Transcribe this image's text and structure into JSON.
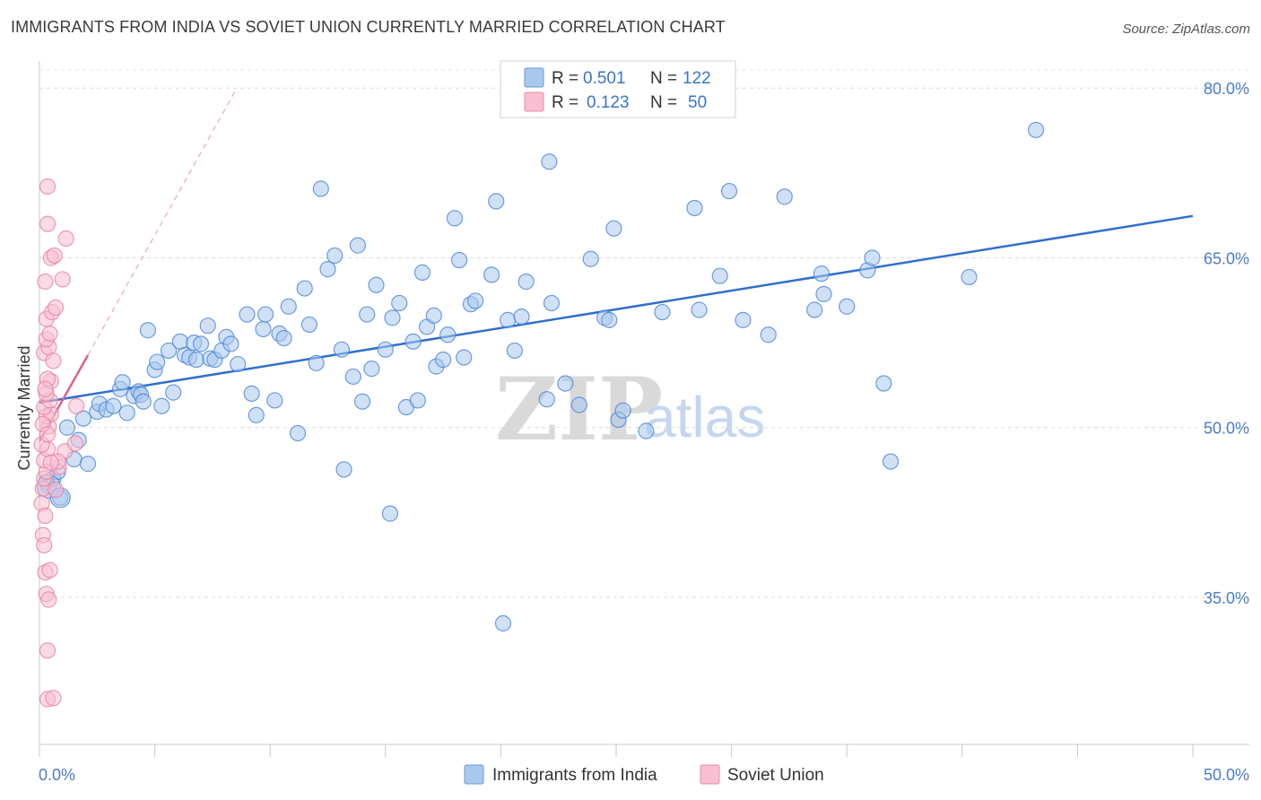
{
  "header": {
    "title": "IMMIGRANTS FROM INDIA VS SOVIET UNION CURRENTLY MARRIED CORRELATION CHART",
    "source": "Source: ZipAtlas.com"
  },
  "watermark": {
    "zip": "ZIP",
    "atlas": "atlas"
  },
  "legend": {
    "r_label": "R =",
    "n_label": "N =",
    "rows": [
      {
        "r": "0.501",
        "n": "122",
        "color": "#9dbfe8"
      },
      {
        "r": "0.123",
        "n": "50",
        "color": "#f5b5c9"
      }
    ]
  },
  "chart_data": {
    "type": "scatter",
    "title": "IMMIGRANTS FROM INDIA VS SOVIET UNION CURRENTLY MARRIED CORRELATION CHART",
    "ylabel": "Currently Married",
    "xlabel": "",
    "xlim": [
      0,
      50
    ],
    "ylim": [
      22,
      82
    ],
    "x_tick_labels": [
      "0.0%",
      "50.0%"
    ],
    "y_ticks": [
      35,
      50,
      65,
      80
    ],
    "y_tick_labels": [
      "35.0%",
      "50.0%",
      "65.0%",
      "80.0%"
    ],
    "grid": true,
    "legend_position": "top-center",
    "series": [
      {
        "name": "Immigrants from India",
        "color": "#4a86d6",
        "fill": "#a9c8ee",
        "trend": {
          "x": [
            0,
            50
          ],
          "y": [
            52.2,
            68.7
          ],
          "color": "#2f6fce"
        },
        "points": [
          [
            0.4,
            44.8
          ],
          [
            0.6,
            45.5
          ],
          [
            0.9,
            43.8
          ],
          [
            0.3,
            45.2
          ],
          [
            0.8,
            46.1
          ],
          [
            1.2,
            50.0
          ],
          [
            1.5,
            47.2
          ],
          [
            1.7,
            48.9
          ],
          [
            1.9,
            50.8
          ],
          [
            2.1,
            46.8
          ],
          [
            2.5,
            51.4
          ],
          [
            2.6,
            52.1
          ],
          [
            2.9,
            51.6
          ],
          [
            3.2,
            51.9
          ],
          [
            3.5,
            53.4
          ],
          [
            3.6,
            54.0
          ],
          [
            3.8,
            51.3
          ],
          [
            4.1,
            52.8
          ],
          [
            4.3,
            53.2
          ],
          [
            4.4,
            52.9
          ],
          [
            4.5,
            52.3
          ],
          [
            4.7,
            58.6
          ],
          [
            5.0,
            55.1
          ],
          [
            5.1,
            55.8
          ],
          [
            5.3,
            51.9
          ],
          [
            5.6,
            56.8
          ],
          [
            5.8,
            53.1
          ],
          [
            6.1,
            57.6
          ],
          [
            6.3,
            56.4
          ],
          [
            6.5,
            56.2
          ],
          [
            6.7,
            57.5
          ],
          [
            6.8,
            56.0
          ],
          [
            7.0,
            57.4
          ],
          [
            7.3,
            59.0
          ],
          [
            7.4,
            56.1
          ],
          [
            7.6,
            56.0
          ],
          [
            7.9,
            56.8
          ],
          [
            8.1,
            58.0
          ],
          [
            8.3,
            57.4
          ],
          [
            8.6,
            55.6
          ],
          [
            9.0,
            60.0
          ],
          [
            9.2,
            53.0
          ],
          [
            9.4,
            51.1
          ],
          [
            9.7,
            58.7
          ],
          [
            9.8,
            60.0
          ],
          [
            10.2,
            52.4
          ],
          [
            10.4,
            58.3
          ],
          [
            10.6,
            57.9
          ],
          [
            10.8,
            60.7
          ],
          [
            11.2,
            49.5
          ],
          [
            11.5,
            62.3
          ],
          [
            11.7,
            59.1
          ],
          [
            12.0,
            55.7
          ],
          [
            12.2,
            71.1
          ],
          [
            12.5,
            64.0
          ],
          [
            12.8,
            65.2
          ],
          [
            13.1,
            56.9
          ],
          [
            13.2,
            46.3
          ],
          [
            13.6,
            54.5
          ],
          [
            13.8,
            66.1
          ],
          [
            14.0,
            52.3
          ],
          [
            14.2,
            60.0
          ],
          [
            14.4,
            55.2
          ],
          [
            14.6,
            62.6
          ],
          [
            15.0,
            56.9
          ],
          [
            15.2,
            42.4
          ],
          [
            15.3,
            59.7
          ],
          [
            15.6,
            61.0
          ],
          [
            15.9,
            51.8
          ],
          [
            16.2,
            57.6
          ],
          [
            16.4,
            52.4
          ],
          [
            16.6,
            63.7
          ],
          [
            16.8,
            58.9
          ],
          [
            17.1,
            59.9
          ],
          [
            17.2,
            55.4
          ],
          [
            17.5,
            56.0
          ],
          [
            17.7,
            58.2
          ],
          [
            18.0,
            68.5
          ],
          [
            18.2,
            64.8
          ],
          [
            18.4,
            56.2
          ],
          [
            18.7,
            60.9
          ],
          [
            18.9,
            61.2
          ],
          [
            19.6,
            63.5
          ],
          [
            19.8,
            70.0
          ],
          [
            20.1,
            32.7
          ],
          [
            20.3,
            59.5
          ],
          [
            20.6,
            56.8
          ],
          [
            20.9,
            59.8
          ],
          [
            21.1,
            62.9
          ],
          [
            22.0,
            52.5
          ],
          [
            22.1,
            73.5
          ],
          [
            22.2,
            61.0
          ],
          [
            22.8,
            53.9
          ],
          [
            23.4,
            52.0
          ],
          [
            23.9,
            64.9
          ],
          [
            24.5,
            59.7
          ],
          [
            24.7,
            59.5
          ],
          [
            24.9,
            67.6
          ],
          [
            25.1,
            50.7
          ],
          [
            25.3,
            51.5
          ],
          [
            26.3,
            49.7
          ],
          [
            27.0,
            60.2
          ],
          [
            28.4,
            69.4
          ],
          [
            28.6,
            60.4
          ],
          [
            29.5,
            63.4
          ],
          [
            29.9,
            70.9
          ],
          [
            30.5,
            59.5
          ],
          [
            31.6,
            58.2
          ],
          [
            32.3,
            70.4
          ],
          [
            33.6,
            60.4
          ],
          [
            33.9,
            63.6
          ],
          [
            34.0,
            61.8
          ],
          [
            35.0,
            60.7
          ],
          [
            35.9,
            63.9
          ],
          [
            36.1,
            65.0
          ],
          [
            36.6,
            53.9
          ],
          [
            36.9,
            47.0
          ],
          [
            40.3,
            63.3
          ],
          [
            43.2,
            76.3
          ]
        ]
      },
      {
        "name": "Soviet Union",
        "color": "#e87fa3",
        "fill": "#f7bfd1",
        "trend": {
          "x": [
            0,
            2.1
          ],
          "y": [
            48.8,
            56.4
          ],
          "color": "#e0608e"
        },
        "trend_extension": {
          "x": [
            2.1,
            8.5
          ],
          "y": [
            56.4,
            79.8
          ]
        },
        "points": [
          [
            0.15,
            44.6
          ],
          [
            0.2,
            45.5
          ],
          [
            0.1,
            43.3
          ],
          [
            0.25,
            42.2
          ],
          [
            0.3,
            46.1
          ],
          [
            0.2,
            47.1
          ],
          [
            0.35,
            48.1
          ],
          [
            0.1,
            48.5
          ],
          [
            0.4,
            50.1
          ],
          [
            0.3,
            51.0
          ],
          [
            0.5,
            51.2
          ],
          [
            0.2,
            51.8
          ],
          [
            0.45,
            52.4
          ],
          [
            0.3,
            53.0
          ],
          [
            0.5,
            54.1
          ],
          [
            0.35,
            54.3
          ],
          [
            0.2,
            56.6
          ],
          [
            0.4,
            57.1
          ],
          [
            0.3,
            57.8
          ],
          [
            0.45,
            58.3
          ],
          [
            0.3,
            59.6
          ],
          [
            0.55,
            60.2
          ],
          [
            0.7,
            60.6
          ],
          [
            0.25,
            62.9
          ],
          [
            1.0,
            63.1
          ],
          [
            0.5,
            65.0
          ],
          [
            0.65,
            65.2
          ],
          [
            1.15,
            66.7
          ],
          [
            0.35,
            68.0
          ],
          [
            0.35,
            71.3
          ],
          [
            0.15,
            40.5
          ],
          [
            0.2,
            39.6
          ],
          [
            0.25,
            37.2
          ],
          [
            0.45,
            37.4
          ],
          [
            0.3,
            35.3
          ],
          [
            0.4,
            34.8
          ],
          [
            0.35,
            30.3
          ],
          [
            0.35,
            26.0
          ],
          [
            0.6,
            26.1
          ],
          [
            0.85,
            46.5
          ],
          [
            1.1,
            47.9
          ],
          [
            1.55,
            48.6
          ],
          [
            1.6,
            51.9
          ],
          [
            0.7,
            44.5
          ],
          [
            0.8,
            47.0
          ],
          [
            0.5,
            46.9
          ],
          [
            0.25,
            53.4
          ],
          [
            0.15,
            50.3
          ],
          [
            0.6,
            55.9
          ],
          [
            0.35,
            49.4
          ]
        ]
      }
    ]
  },
  "bottom_legend": [
    {
      "label": "Immigrants from India",
      "color": "#a9c8ee",
      "border": "#4a86d6"
    },
    {
      "label": "Soviet Union",
      "color": "#f7bfd1",
      "border": "#e87fa3"
    }
  ]
}
